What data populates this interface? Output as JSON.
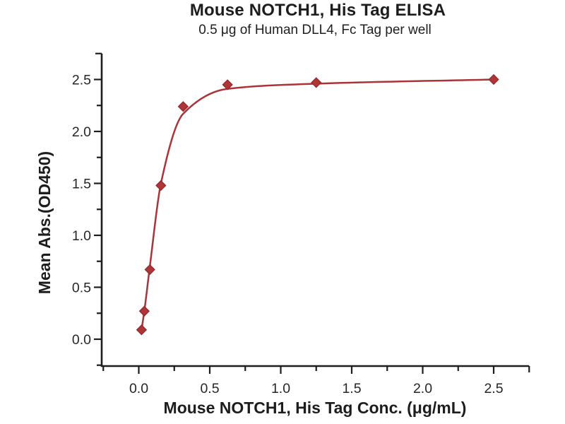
{
  "chart_data": {
    "type": "scatter",
    "title": "Mouse NOTCH1, His Tag ELISA",
    "subtitle": "0.5 μg of Human DLL4, Fc Tag per well",
    "xlabel": "Mouse NOTCH1, His Tag Conc. (μg/mL)",
    "ylabel": "Mean Abs.(OD450)",
    "x": [
      0.0195,
      0.039,
      0.078,
      0.156,
      0.3125,
      0.625,
      1.25,
      2.5
    ],
    "y": [
      0.09,
      0.27,
      0.67,
      1.48,
      2.24,
      2.45,
      2.47,
      2.5
    ],
    "fit_curve": [
      [
        0.0195,
        0.09
      ],
      [
        0.039,
        0.27
      ],
      [
        0.078,
        0.7
      ],
      [
        0.156,
        1.5
      ],
      [
        0.3125,
        2.17
      ],
      [
        0.625,
        2.41
      ],
      [
        1.25,
        2.46
      ],
      [
        2.5,
        2.5
      ]
    ],
    "xlim": [
      -0.25,
      2.75
    ],
    "ylim": [
      -0.25,
      2.75
    ],
    "x_major_ticks": [
      0,
      0.5,
      1,
      1.5,
      2,
      2.5
    ],
    "x_tick_labels": [
      "0.0",
      "0.5",
      "1.0",
      "1.5",
      "2.0",
      "2.5"
    ],
    "y_major_ticks": [
      0,
      0.5,
      1,
      1.5,
      2,
      2.5
    ],
    "y_tick_labels": [
      "0.0",
      "0.5",
      "1.0",
      "1.5",
      "2.0",
      "2.5"
    ],
    "minor_tick_step": 0.25,
    "grid": false,
    "legend_position": "none",
    "marker_shape": "diamond",
    "colors": {
      "line": "#A93539",
      "marker_fill": "#B13437",
      "marker_edge": "#8C2A2E",
      "axis": "#1d1d1d",
      "text": "#1d1d1d"
    }
  }
}
